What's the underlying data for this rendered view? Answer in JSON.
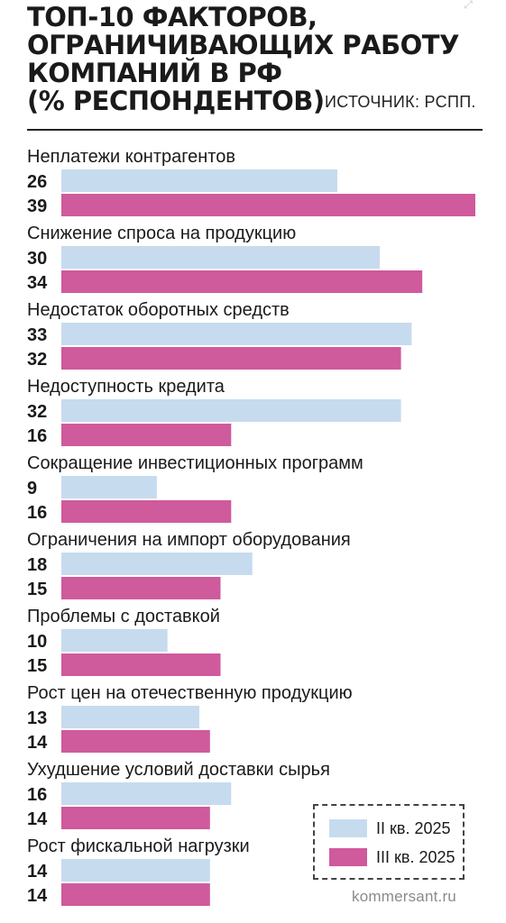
{
  "header": {
    "title_lines": [
      "ТОП-10 ФАКТОРОВ,",
      "ОГРАНИЧИВАЮЩИХ РАБОТУ",
      "КОМПАНИЙ В РФ",
      "(% РЕСПОНДЕНТОВ)"
    ],
    "source": "ИСТОЧНИК: РСПП."
  },
  "colors": {
    "q2": "#c6dbee",
    "q3": "#cf5a9c",
    "text": "#1a1a1a"
  },
  "corner_icon": "expand-icon",
  "chart_data": {
    "type": "bar",
    "orientation": "horizontal",
    "title": "ТОП-10 ФАКТОРОВ, ОГРАНИЧИВАЮЩИХ РАБОТУ КОМПАНИЙ В РФ (% РЕСПОНДЕНТОВ)",
    "categories": [
      "Неплатежи контрагентов",
      "Снижение спроса на продукцию",
      "Недостаток оборотных средств",
      "Недоступность кредита",
      "Сокращение инвестиционных программ",
      "Ограничения на импорт оборудования",
      "Проблемы с доставкой",
      "Рост цен на отечественную продукцию",
      "Ухудшение условий доставки сырья",
      "Рост фискальной нагрузки"
    ],
    "series": [
      {
        "name": "II кв. 2025",
        "values": [
          26,
          30,
          33,
          32,
          9,
          18,
          10,
          13,
          16,
          14
        ]
      },
      {
        "name": "III кв. 2025",
        "values": [
          39,
          34,
          32,
          16,
          16,
          15,
          15,
          14,
          14,
          14
        ]
      }
    ],
    "xlim": [
      0,
      39
    ],
    "grid": false,
    "legend_position": "bottom-right"
  },
  "footer": {
    "site": "kommersant.ru"
  }
}
